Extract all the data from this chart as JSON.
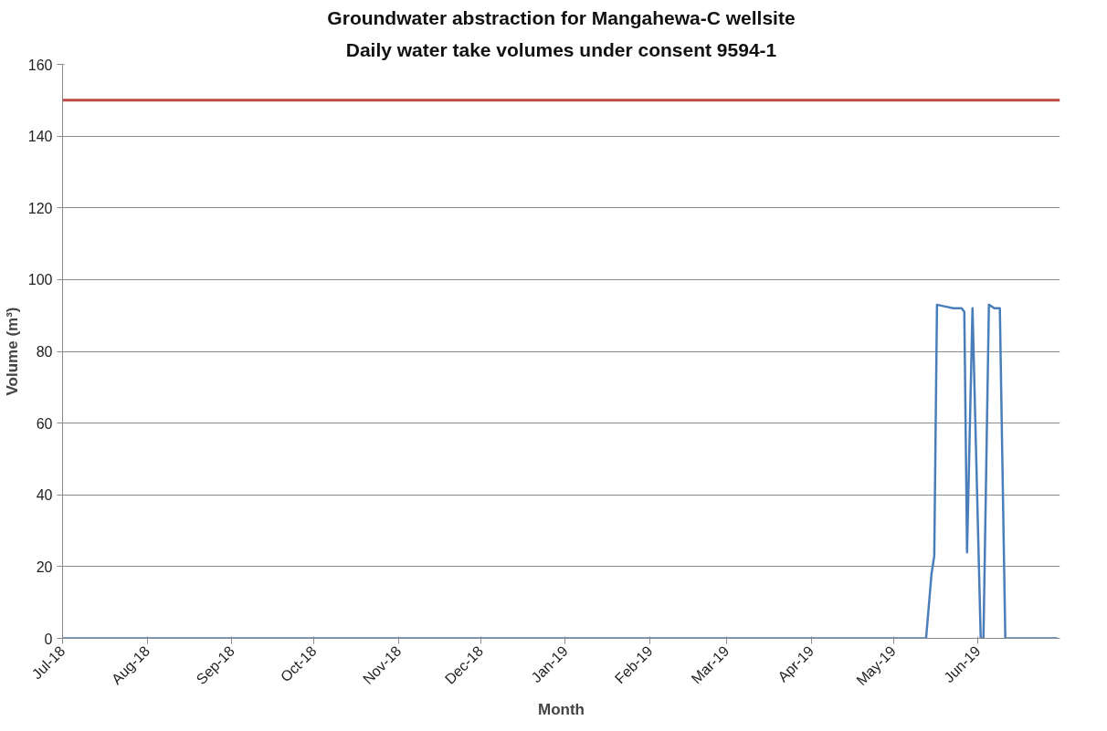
{
  "chart_data": {
    "type": "line",
    "title": "Groundwater abstraction for Mangahewa-C wellsite",
    "subtitle": "Daily water take volumes under consent 9594-1",
    "xlabel": "Month",
    "ylabel": "Volume (m³)",
    "x": [
      "2018-07-01",
      "2019-05-13",
      "2019-05-15",
      "2019-05-16",
      "2019-05-17",
      "2019-05-20",
      "2019-05-23",
      "2019-05-26",
      "2019-05-27",
      "2019-05-28",
      "2019-05-30",
      "2019-06-02",
      "2019-06-03",
      "2019-06-05",
      "2019-06-07",
      "2019-06-09",
      "2019-06-11",
      "2019-06-30"
    ],
    "series": [
      {
        "color": "#4a7ebb",
        "values": [
          0,
          0,
          18,
          23,
          93,
          92.5,
          92,
          92,
          91,
          24,
          92,
          0,
          0,
          93,
          92,
          92,
          0,
          0
        ]
      }
    ],
    "xlim": [
      "2018-07-01",
      "2019-07-01"
    ],
    "xticks": [
      {
        "value": "2018-07-01",
        "label": "Jul-18"
      },
      {
        "value": "2018-08-01",
        "label": "Aug-18"
      },
      {
        "value": "2018-09-01",
        "label": "Sep-18"
      },
      {
        "value": "2018-10-01",
        "label": "Oct-18"
      },
      {
        "value": "2018-11-01",
        "label": "Nov-18"
      },
      {
        "value": "2018-12-01",
        "label": "Dec-18"
      },
      {
        "value": "2019-01-01",
        "label": "Jan-19"
      },
      {
        "value": "2019-02-01",
        "label": "Feb-19"
      },
      {
        "value": "2019-03-01",
        "label": "Mar-19"
      },
      {
        "value": "2019-04-01",
        "label": "Apr-19"
      },
      {
        "value": "2019-05-01",
        "label": "May-19"
      },
      {
        "value": "2019-06-01",
        "label": "Jun-19"
      }
    ],
    "ylim": [
      0,
      160
    ],
    "yticks": [
      0,
      20,
      40,
      60,
      80,
      100,
      120,
      140,
      160
    ],
    "grid": "y",
    "marker": "none",
    "line_style": "solid",
    "ref_lines": [
      {
        "axis": "y",
        "value": 150,
        "label": null,
        "color": "#be4b48"
      }
    ]
  }
}
